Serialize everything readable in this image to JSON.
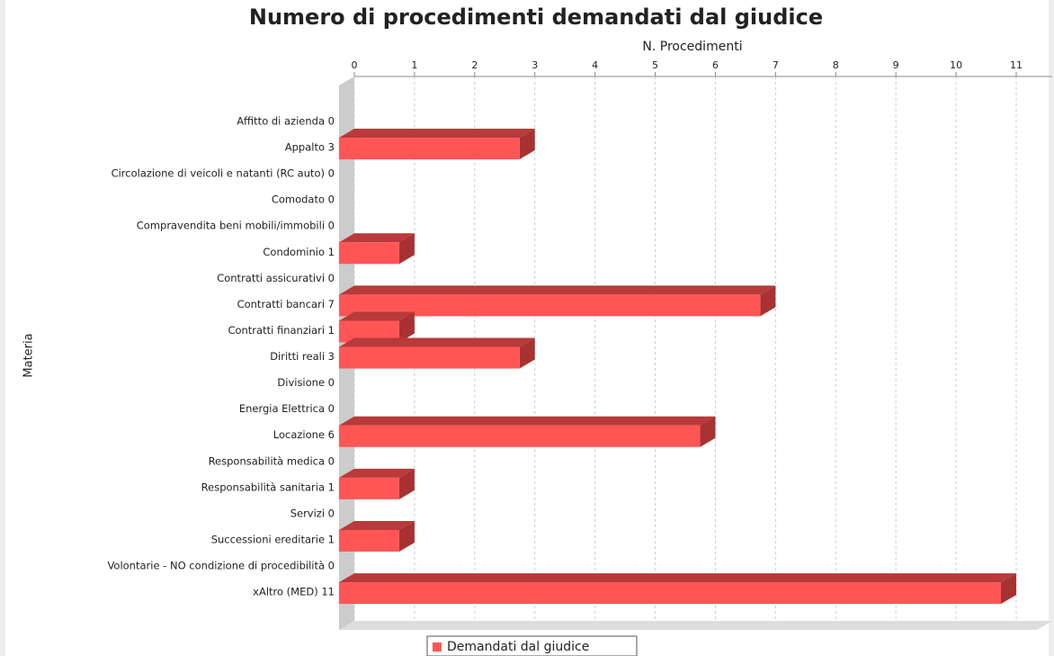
{
  "chart_data": {
    "type": "bar",
    "orientation": "horizontal",
    "title": "Numero di procedimenti demandati dal giudice",
    "x_label": "N. Procedimenti",
    "y_label": "Materia",
    "categories": [
      "Affitto di azienda 0",
      "Appalto 3",
      "Circolazione di veicoli e natanti  (RC auto)  0",
      "Comodato 0",
      "Compravendita beni mobili/immobili 0",
      "Condominio 1",
      "Contratti assicurativi 0",
      "Contratti bancari  7",
      "Contratti finanziari 1",
      "Diritti reali  3",
      "Divisione  0",
      "Energia Elettrica 0",
      "Locazione  6",
      "Responsabilità medica 0",
      "Responsabilità sanitaria 1",
      "Servizi 0",
      "Successioni ereditarie  1",
      "Volontarie - NO condizione di procedibilità 0",
      "xAltro (MED) 11"
    ],
    "series": [
      {
        "name": "Demandati dal giudice",
        "color": "#ff5555",
        "values": [
          0,
          3,
          0,
          0,
          0,
          1,
          0,
          7,
          1,
          3,
          0,
          0,
          6,
          0,
          1,
          0,
          1,
          0,
          11
        ]
      }
    ],
    "xlim": [
      0,
      11
    ],
    "xticks": [
      0,
      1,
      2,
      3,
      4,
      5,
      6,
      7,
      8,
      9,
      10,
      11
    ],
    "grid": true,
    "legend": "bottom"
  }
}
